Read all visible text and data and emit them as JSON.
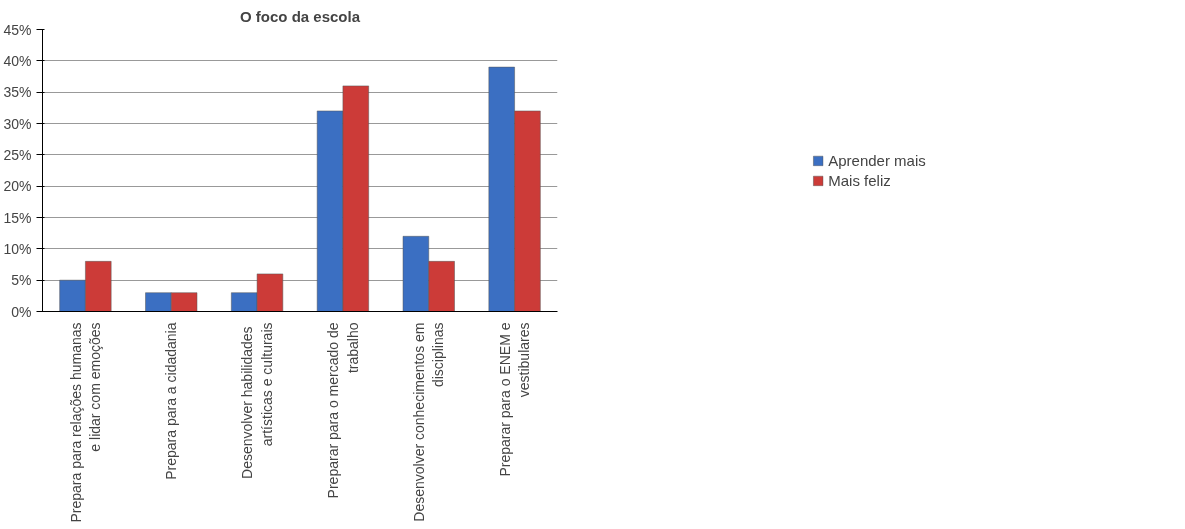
{
  "chart_data": {
    "type": "bar",
    "title": "O foco da escola",
    "categories": [
      "Prepara para relações humanas e lidar com emoções",
      "Prepara para a cidadania",
      "Desenvolver  habilidades artísticas e culturais",
      "Preparar para o mercado de trabalho",
      "Desenvolver conhecimentos em disciplinas",
      "Preparar para o ENEM e vestibulares"
    ],
    "series": [
      {
        "name": "Aprender mais",
        "color": "#3b6fc2",
        "values": [
          5,
          3,
          3,
          32,
          12,
          39
        ]
      },
      {
        "name": "Mais feliz",
        "color": "#cc3b38",
        "values": [
          8,
          3,
          6,
          36,
          8,
          32
        ]
      }
    ],
    "ylim": [
      0,
      45
    ],
    "yticks": [
      {
        "value": 0,
        "label": "0%"
      },
      {
        "value": 5,
        "label": "5%"
      },
      {
        "value": 10,
        "label": "10%"
      },
      {
        "value": 15,
        "label": "15%"
      },
      {
        "value": 20,
        "label": "20%"
      },
      {
        "value": 25,
        "label": "25%"
      },
      {
        "value": 30,
        "label": "30%"
      },
      {
        "value": 35,
        "label": "35%"
      },
      {
        "value": 40,
        "label": "40%"
      },
      {
        "value": 45,
        "label": "45%"
      }
    ],
    "grid": "y",
    "legend": "right"
  }
}
